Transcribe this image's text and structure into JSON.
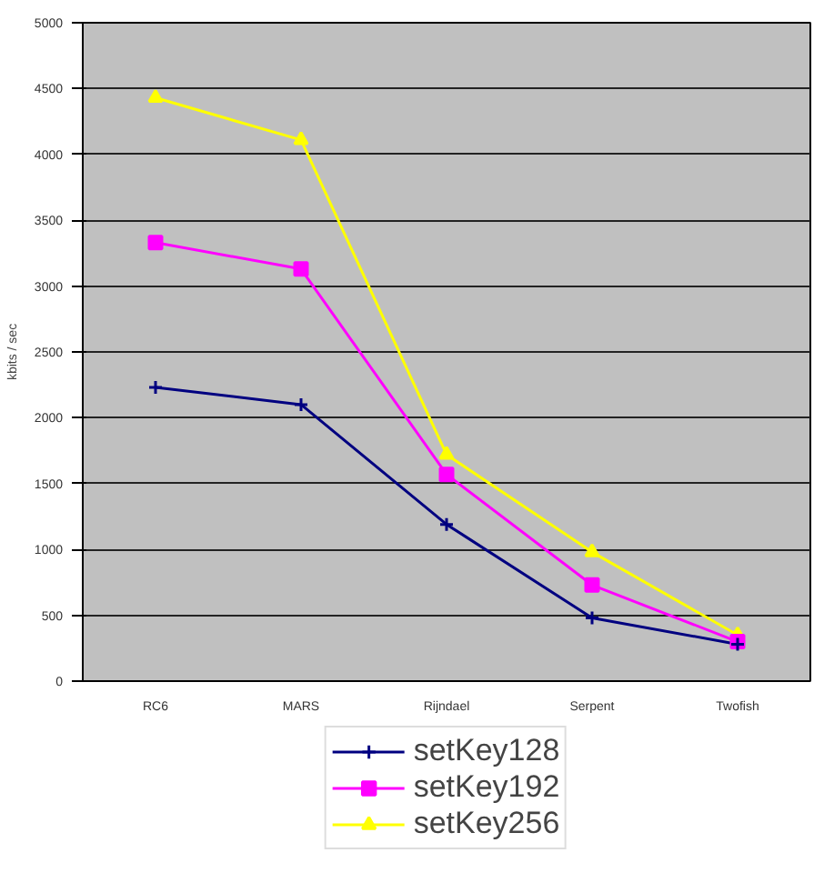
{
  "chart_data": {
    "type": "line",
    "ylabel": "kbits / sec",
    "categories": [
      "RC6",
      "MARS",
      "Rijndael",
      "Serpent",
      "Twofish"
    ],
    "series": [
      {
        "name": "setKey128",
        "color": "#000080",
        "marker": "cross",
        "values": [
          2230,
          2100,
          1190,
          480,
          280
        ]
      },
      {
        "name": "setKey192",
        "color": "#ff00ff",
        "marker": "square",
        "values": [
          3330,
          3130,
          1570,
          730,
          300
        ]
      },
      {
        "name": "setKey256",
        "color": "#ffff00",
        "marker": "triangle",
        "values": [
          4430,
          4110,
          1720,
          980,
          350
        ]
      }
    ],
    "ylim": [
      0,
      5000
    ],
    "yticks": [
      0,
      500,
      1000,
      1500,
      2000,
      2500,
      3000,
      3500,
      4000,
      4500,
      5000
    ],
    "grid": "y",
    "legend": "bottom"
  }
}
